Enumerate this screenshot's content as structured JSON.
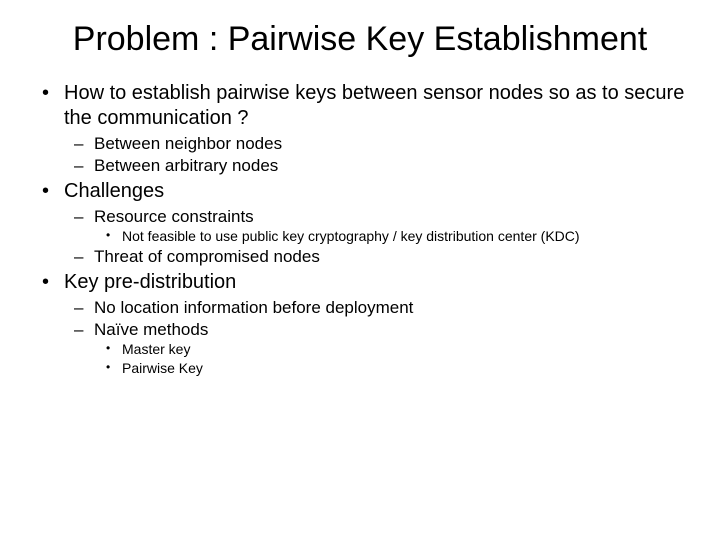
{
  "title": "Problem : Pairwise Key Establishment",
  "items": [
    {
      "text": "How to establish pairwise keys between sensor nodes so as to secure the communication ?",
      "sub": [
        {
          "text": "Between neighbor nodes"
        },
        {
          "text": "Between arbitrary nodes"
        }
      ]
    },
    {
      "text": "Challenges",
      "sub": [
        {
          "text": "Resource constraints",
          "sub": [
            {
              "text": "Not feasible to use public key cryptography / key distribution center (KDC)"
            }
          ]
        },
        {
          "text": "Threat of compromised nodes"
        }
      ]
    },
    {
      "text": "Key pre-distribution",
      "sub": [
        {
          "text": "No location information before deployment"
        },
        {
          "text": "Naïve methods",
          "sub": [
            {
              "text": "Master key"
            },
            {
              "text": "Pairwise Key"
            }
          ]
        }
      ]
    }
  ],
  "style": {
    "background_color": "#ffffff",
    "text_color": "#000000",
    "title_fontsize": 34,
    "l1_fontsize": 20,
    "l2_fontsize": 17,
    "l3_fontsize": 14
  }
}
